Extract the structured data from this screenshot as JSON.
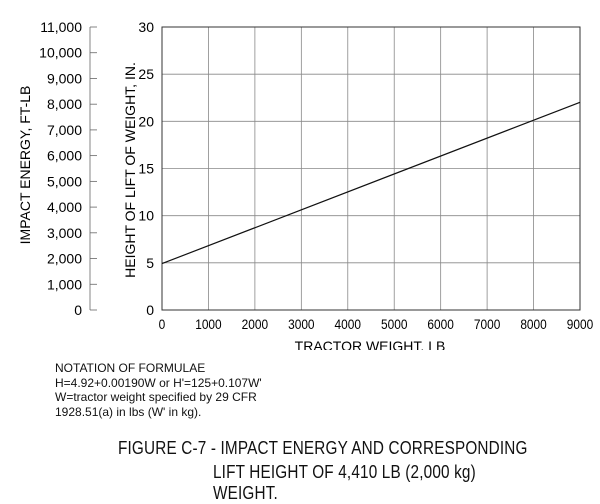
{
  "chart_data": {
    "type": "line",
    "x": [
      0,
      9000
    ],
    "series": [
      {
        "values": [
          4.92,
          22.02
        ]
      }
    ],
    "xlabel": "TRACTOR WEIGHT, LB",
    "ylabel": "HEIGHT OF LIFT OF WEIGHT, IN.",
    "y2label": "IMPACT ENERGY, FT-LB",
    "xlim": [
      0,
      9000
    ],
    "ylim": [
      0,
      30
    ],
    "y2lim": [
      0,
      11000
    ],
    "xticks": [
      "0",
      "1000",
      "2000",
      "3000",
      "4000",
      "5000",
      "6000",
      "7000",
      "8000",
      "9000"
    ],
    "yticks": [
      "0",
      "5",
      "10",
      "15",
      "20",
      "25",
      "30"
    ],
    "y2ticks": [
      "0",
      "1,000",
      "2,000",
      "3,000",
      "4,000",
      "5,000",
      "6,000",
      "7,000",
      "8,000",
      "9,000",
      "10,000",
      "11,000"
    ],
    "grid": true,
    "line_color": "#111111"
  },
  "notes": {
    "title": "NOTATION OF FORMULAE",
    "line1": "H=4.92+0.00190W or H'=125+0.107W'",
    "line2": "W=tractor weight specified by 29 CFR",
    "line3": "1928.51(a) in lbs (W' in kg)."
  },
  "caption": {
    "line1": "FIGURE C-7 - IMPACT ENERGY AND CORRESPONDING",
    "line2": "LIFT HEIGHT OF 4,410 LB (2,000 kg) WEIGHT."
  }
}
